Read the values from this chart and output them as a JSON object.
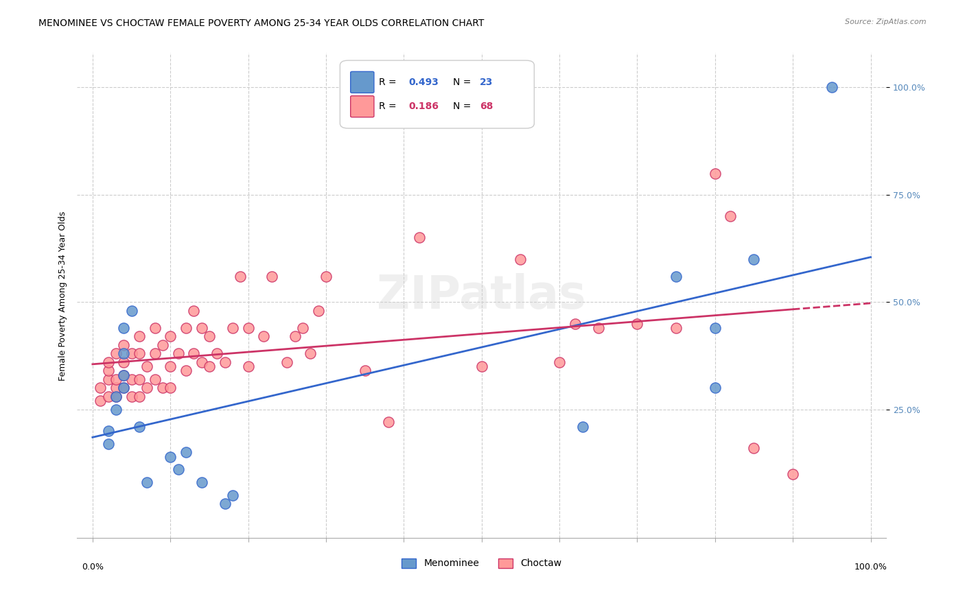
{
  "title": "MENOMINEE VS CHOCTAW FEMALE POVERTY AMONG 25-34 YEAR OLDS CORRELATION CHART",
  "source": "Source: ZipAtlas.com",
  "ylabel": "Female Poverty Among 25-34 Year Olds",
  "legend1_r": "0.493",
  "legend1_n": "23",
  "legend2_r": "0.186",
  "legend2_n": "68",
  "menominee_color": "#6699cc",
  "choctaw_color": "#ff9999",
  "line_menominee_color": "#3366cc",
  "line_choctaw_color": "#cc3366",
  "watermark": "ZIPatlas",
  "menominee_x": [
    0.02,
    0.02,
    0.03,
    0.03,
    0.04,
    0.04,
    0.04,
    0.04,
    0.05,
    0.06,
    0.07,
    0.1,
    0.11,
    0.12,
    0.14,
    0.17,
    0.18,
    0.63,
    0.75,
    0.8,
    0.8,
    0.85,
    0.95
  ],
  "menominee_y": [
    0.2,
    0.17,
    0.25,
    0.28,
    0.3,
    0.33,
    0.38,
    0.44,
    0.48,
    0.21,
    0.08,
    0.14,
    0.11,
    0.15,
    0.08,
    0.03,
    0.05,
    0.21,
    0.56,
    0.44,
    0.3,
    0.6,
    1.0
  ],
  "choctaw_x": [
    0.01,
    0.01,
    0.02,
    0.02,
    0.02,
    0.02,
    0.03,
    0.03,
    0.03,
    0.03,
    0.04,
    0.04,
    0.04,
    0.04,
    0.05,
    0.05,
    0.05,
    0.06,
    0.06,
    0.06,
    0.06,
    0.07,
    0.07,
    0.08,
    0.08,
    0.08,
    0.09,
    0.09,
    0.1,
    0.1,
    0.1,
    0.11,
    0.12,
    0.12,
    0.13,
    0.13,
    0.14,
    0.14,
    0.15,
    0.15,
    0.16,
    0.17,
    0.18,
    0.19,
    0.2,
    0.2,
    0.22,
    0.23,
    0.25,
    0.26,
    0.27,
    0.28,
    0.29,
    0.3,
    0.35,
    0.38,
    0.42,
    0.5,
    0.55,
    0.6,
    0.62,
    0.65,
    0.7,
    0.75,
    0.8,
    0.82,
    0.85,
    0.9
  ],
  "choctaw_y": [
    0.3,
    0.27,
    0.28,
    0.32,
    0.34,
    0.36,
    0.28,
    0.3,
    0.32,
    0.38,
    0.3,
    0.33,
    0.36,
    0.4,
    0.28,
    0.32,
    0.38,
    0.28,
    0.32,
    0.38,
    0.42,
    0.3,
    0.35,
    0.32,
    0.38,
    0.44,
    0.3,
    0.4,
    0.3,
    0.35,
    0.42,
    0.38,
    0.34,
    0.44,
    0.38,
    0.48,
    0.36,
    0.44,
    0.35,
    0.42,
    0.38,
    0.36,
    0.44,
    0.56,
    0.35,
    0.44,
    0.42,
    0.56,
    0.36,
    0.42,
    0.44,
    0.38,
    0.48,
    0.56,
    0.34,
    0.22,
    0.65,
    0.35,
    0.6,
    0.36,
    0.45,
    0.44,
    0.45,
    0.44,
    0.8,
    0.7,
    0.16,
    0.1
  ],
  "ytick_values": [
    0.25,
    0.5,
    0.75,
    1.0
  ],
  "title_fontsize": 10,
  "axis_label_fontsize": 9,
  "tick_fontsize": 9
}
